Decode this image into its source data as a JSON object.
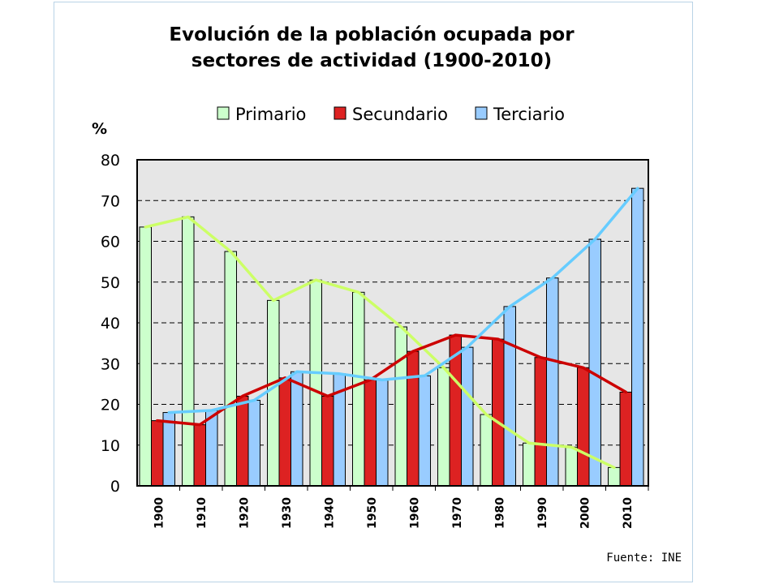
{
  "chart_data": {
    "type": "bar",
    "title_lines": [
      "Evolución de la población ocupada por",
      "sectores de actividad (1900-2010)"
    ],
    "ylabel": "%",
    "source": "Fuente: INE",
    "categories": [
      "1900",
      "1910",
      "1920",
      "1930",
      "1940",
      "1950",
      "1960",
      "1970",
      "1980",
      "1990",
      "2000",
      "2010"
    ],
    "ylim": [
      0,
      80
    ],
    "yticks": [
      0,
      10,
      20,
      30,
      40,
      50,
      60,
      70,
      80
    ],
    "grid": true,
    "legend_position": "top",
    "series": [
      {
        "name": "Primario",
        "color": "#ccffcc",
        "line_color": "#ccff66",
        "values": [
          63.5,
          66,
          57.5,
          45.5,
          50.5,
          47.5,
          39,
          29,
          17.5,
          10.5,
          9.5,
          4.5
        ]
      },
      {
        "name": "Secundario",
        "color": "#dd2222",
        "line_color": "#cc0000",
        "values": [
          16,
          15,
          22,
          26.5,
          22,
          26,
          33,
          37,
          36,
          31.5,
          29,
          23
        ]
      },
      {
        "name": "Terciario",
        "color": "#99ccff",
        "line_color": "#66ccff",
        "values": [
          18,
          18.5,
          21,
          28,
          27.5,
          26,
          27,
          34,
          44,
          51,
          60.5,
          73
        ]
      }
    ]
  }
}
